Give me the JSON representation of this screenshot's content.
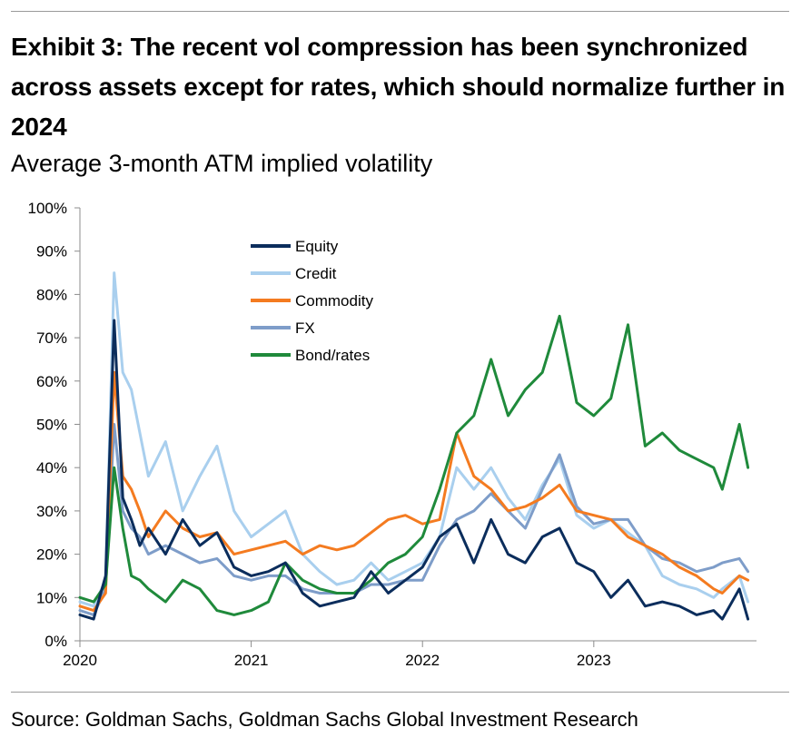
{
  "header": {
    "title": "Exhibit 3: The recent vol compression has been synchronized across assets except for rates, which should normalize further in 2024",
    "subtitle": "Average 3-month ATM implied volatility"
  },
  "footer": {
    "source": "Source: Goldman Sachs, Goldman Sachs Global Investment Research"
  },
  "chart_data": {
    "type": "line",
    "title": "",
    "xlabel": "",
    "ylabel": "",
    "xlim": [
      2020.0,
      2023.95
    ],
    "ylim": [
      0,
      100
    ],
    "x_ticks": [
      2020,
      2021,
      2022,
      2023
    ],
    "x_tick_labels": [
      "2020",
      "2021",
      "2022",
      "2023"
    ],
    "y_ticks": [
      0,
      10,
      20,
      30,
      40,
      50,
      60,
      70,
      80,
      90,
      100
    ],
    "y_tick_labels": [
      "0%",
      "10%",
      "20%",
      "30%",
      "40%",
      "50%",
      "60%",
      "70%",
      "80%",
      "90%",
      "100%"
    ],
    "grid": false,
    "legend_position": "top-center",
    "series": [
      {
        "name": "Equity",
        "color": "#0b2d5c",
        "x": [
          2020.0,
          2020.08,
          2020.15,
          2020.2,
          2020.25,
          2020.3,
          2020.35,
          2020.4,
          2020.5,
          2020.6,
          2020.7,
          2020.8,
          2020.9,
          2021.0,
          2021.1,
          2021.2,
          2021.3,
          2021.4,
          2021.5,
          2021.6,
          2021.7,
          2021.8,
          2021.9,
          2022.0,
          2022.1,
          2022.2,
          2022.3,
          2022.4,
          2022.5,
          2022.6,
          2022.7,
          2022.8,
          2022.9,
          2023.0,
          2023.1,
          2023.2,
          2023.3,
          2023.4,
          2023.5,
          2023.6,
          2023.7,
          2023.75,
          2023.85,
          2023.9
        ],
        "y": [
          6,
          5,
          15,
          74,
          33,
          28,
          22,
          26,
          20,
          28,
          22,
          25,
          17,
          15,
          16,
          18,
          11,
          8,
          9,
          10,
          16,
          11,
          14,
          17,
          24,
          27,
          18,
          28,
          20,
          18,
          24,
          26,
          18,
          16,
          10,
          14,
          8,
          9,
          8,
          6,
          7,
          5,
          12,
          5
        ]
      },
      {
        "name": "Credit",
        "color": "#a9cfee",
        "x": [
          2020.0,
          2020.08,
          2020.15,
          2020.2,
          2020.25,
          2020.3,
          2020.35,
          2020.4,
          2020.5,
          2020.6,
          2020.7,
          2020.8,
          2020.9,
          2021.0,
          2021.1,
          2021.2,
          2021.3,
          2021.4,
          2021.5,
          2021.6,
          2021.7,
          2021.8,
          2021.9,
          2022.0,
          2022.1,
          2022.2,
          2022.3,
          2022.4,
          2022.5,
          2022.6,
          2022.7,
          2022.8,
          2022.9,
          2023.0,
          2023.1,
          2023.2,
          2023.3,
          2023.4,
          2023.5,
          2023.6,
          2023.7,
          2023.75,
          2023.85,
          2023.9
        ],
        "y": [
          9,
          8,
          14,
          85,
          62,
          58,
          48,
          38,
          46,
          30,
          38,
          45,
          30,
          24,
          27,
          30,
          20,
          16,
          13,
          14,
          18,
          14,
          16,
          18,
          24,
          40,
          35,
          40,
          33,
          28,
          36,
          42,
          29,
          26,
          28,
          25,
          22,
          15,
          13,
          12,
          10,
          12,
          15,
          9
        ]
      },
      {
        "name": "Commodity",
        "color": "#f47b20",
        "x": [
          2020.0,
          2020.08,
          2020.15,
          2020.2,
          2020.25,
          2020.3,
          2020.35,
          2020.4,
          2020.5,
          2020.6,
          2020.7,
          2020.8,
          2020.9,
          2021.0,
          2021.1,
          2021.2,
          2021.3,
          2021.4,
          2021.5,
          2021.6,
          2021.7,
          2021.8,
          2021.9,
          2022.0,
          2022.1,
          2022.2,
          2022.3,
          2022.4,
          2022.5,
          2022.6,
          2022.7,
          2022.8,
          2022.9,
          2023.0,
          2023.1,
          2023.2,
          2023.3,
          2023.4,
          2023.5,
          2023.6,
          2023.7,
          2023.75,
          2023.85,
          2023.9
        ],
        "y": [
          8,
          7,
          11,
          62,
          38,
          35,
          30,
          24,
          30,
          26,
          24,
          25,
          20,
          21,
          22,
          23,
          20,
          22,
          21,
          22,
          25,
          28,
          29,
          27,
          28,
          48,
          38,
          35,
          30,
          31,
          33,
          36,
          30,
          29,
          28,
          24,
          22,
          20,
          17,
          15,
          12,
          11,
          15,
          14
        ]
      },
      {
        "name": "FX",
        "color": "#7e9dc9",
        "x": [
          2020.0,
          2020.08,
          2020.15,
          2020.2,
          2020.25,
          2020.3,
          2020.35,
          2020.4,
          2020.5,
          2020.6,
          2020.7,
          2020.8,
          2020.9,
          2021.0,
          2021.1,
          2021.2,
          2021.3,
          2021.4,
          2021.5,
          2021.6,
          2021.7,
          2021.8,
          2021.9,
          2022.0,
          2022.1,
          2022.2,
          2022.3,
          2022.4,
          2022.5,
          2022.6,
          2022.7,
          2022.8,
          2022.9,
          2023.0,
          2023.1,
          2023.2,
          2023.3,
          2023.4,
          2023.5,
          2023.6,
          2023.7,
          2023.75,
          2023.85,
          2023.9
        ],
        "y": [
          7,
          6,
          12,
          50,
          30,
          26,
          24,
          20,
          22,
          20,
          18,
          19,
          15,
          14,
          15,
          15,
          12,
          11,
          11,
          11,
          13,
          13,
          14,
          14,
          22,
          28,
          30,
          34,
          30,
          26,
          35,
          43,
          31,
          27,
          28,
          28,
          22,
          19,
          18,
          16,
          17,
          18,
          19,
          16
        ]
      },
      {
        "name": "Bond/rates",
        "color": "#1f8a3b",
        "x": [
          2020.0,
          2020.08,
          2020.15,
          2020.2,
          2020.25,
          2020.3,
          2020.35,
          2020.4,
          2020.5,
          2020.6,
          2020.7,
          2020.8,
          2020.9,
          2021.0,
          2021.1,
          2021.2,
          2021.3,
          2021.4,
          2021.5,
          2021.6,
          2021.7,
          2021.8,
          2021.9,
          2022.0,
          2022.1,
          2022.2,
          2022.3,
          2022.4,
          2022.5,
          2022.6,
          2022.7,
          2022.8,
          2022.9,
          2023.0,
          2023.1,
          2023.2,
          2023.3,
          2023.4,
          2023.5,
          2023.6,
          2023.7,
          2023.75,
          2023.85,
          2023.9
        ],
        "y": [
          10,
          9,
          13,
          40,
          26,
          15,
          14,
          12,
          9,
          14,
          12,
          7,
          6,
          7,
          9,
          18,
          14,
          12,
          11,
          11,
          14,
          18,
          20,
          24,
          35,
          48,
          52,
          65,
          52,
          58,
          62,
          75,
          55,
          52,
          56,
          73,
          45,
          48,
          44,
          42,
          40,
          35,
          50,
          40
        ]
      }
    ]
  }
}
